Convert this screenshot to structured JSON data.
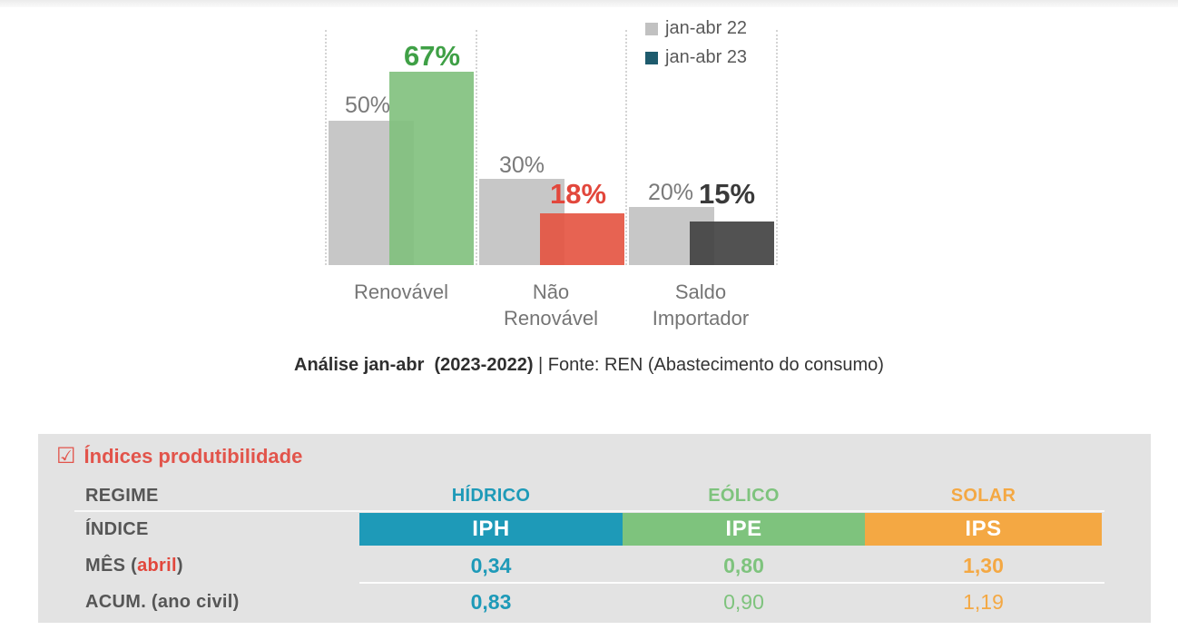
{
  "colors": {
    "prev_bar_gray": "#c7c7c7",
    "renewable_green": "#8cc588",
    "renewable_label_green": "#3fa046",
    "nonrenewable_red": "#e7604f",
    "nonrenewable_label_red": "#e2473c",
    "importer_dark": "#4e4e4e",
    "importer_label_dark": "#3a3a3a",
    "legend_23_teal": "#1e5b6d",
    "table_hydro_teal": "#1e9ab8",
    "table_wind_green": "#7ec37d",
    "table_solar_orange": "#f4a843",
    "table_title_red": "#e2544b",
    "table_bg_gray": "#e3e3e3"
  },
  "chart_data": [
    {
      "type": "bar",
      "title": "",
      "categories": [
        "Renovável",
        "Não Renovável",
        "Saldo Importador"
      ],
      "series": [
        {
          "name": "jan-abr 22",
          "swatch": "#c1c1c1",
          "values": [
            50,
            30,
            20
          ],
          "bar_colors": [
            "#c7c7c7",
            "#c7c7c7",
            "#c7c7c7"
          ],
          "label_colors": [
            "#7a7a7a",
            "#7a7a7a",
            "#7a7a7a"
          ]
        },
        {
          "name": "jan-abr 23",
          "swatch": "#1e5b6d",
          "values": [
            67,
            18,
            15
          ],
          "bar_colors": [
            "#7fc07c",
            "#e4523f",
            "#3f3f3f"
          ],
          "label_colors": [
            "#3fa046",
            "#e2473c",
            "#3a3a3a"
          ]
        }
      ],
      "unit": "%",
      "ylim": [
        0,
        82
      ],
      "grid": "dotted vertical group separators, no axes",
      "legend_position": "top-right",
      "caption": "Análise jan-abr  (2023-2022) | Fonte: REN (Abastecimento do consumo)"
    },
    {
      "type": "table",
      "title": "Índices produtibilidade",
      "row_headers": [
        "REGIME",
        "ÍNDICE",
        "MÊS (abril)",
        "ACUM. (ano civil)"
      ],
      "columns": [
        {
          "regime": "HÍDRICO",
          "indice": "IPH",
          "mes": "0,34",
          "acum": "0,83",
          "color": "#1e9ab8"
        },
        {
          "regime": "EÓLICO",
          "indice": "IPE",
          "mes": "0,80",
          "acum": "0,90",
          "color": "#7ec37d"
        },
        {
          "regime": "SOLAR",
          "indice": "IPS",
          "mes": "1,30",
          "acum": "1,19",
          "color": "#f4a843"
        }
      ]
    }
  ],
  "caption": {
    "bold": "Análise jan-abr  (2023-2022)",
    "rest": " | Fonte: REN (Abastecimento do consumo)"
  },
  "table": {
    "icon": "☑",
    "title": "Índices produtibilidade",
    "labels": {
      "regime": "REGIME",
      "indice": "ÍNDICE",
      "mes_prefix": "MÊS (",
      "mes_month": "abril",
      "mes_suffix": ")",
      "acum": "ACUM. (ano civil)"
    },
    "columns": [
      {
        "regime": "HÍDRICO",
        "indice": "IPH",
        "mes": "0,34",
        "acum": "0,83",
        "color": "#1e9ab8"
      },
      {
        "regime": "EÓLICO",
        "indice": "IPE",
        "mes": "0,80",
        "acum": "0,90",
        "color": "#7ec37d"
      },
      {
        "regime": "SOLAR",
        "indice": "IPS",
        "mes": "1,30",
        "acum": "1,19",
        "color": "#f4a843"
      }
    ]
  }
}
